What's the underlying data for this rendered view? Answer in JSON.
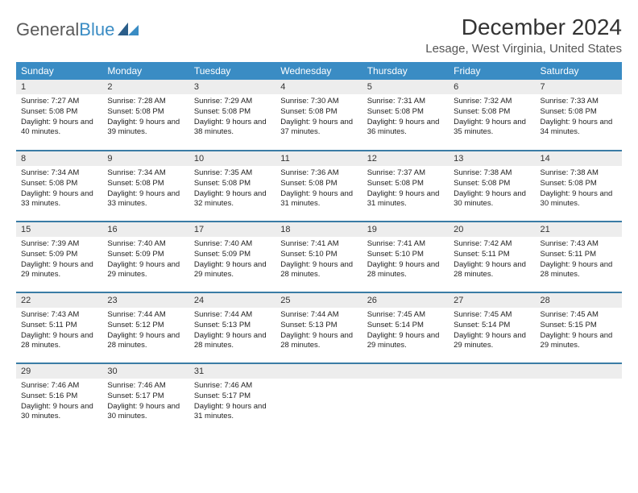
{
  "logo": {
    "text1": "General",
    "text2": "Blue"
  },
  "title": "December 2024",
  "location": "Lesage, West Virginia, United States",
  "colors": {
    "header_bg": "#3a8cc4",
    "header_text": "#ffffff",
    "row_border": "#3a7ca5",
    "daynum_bg": "#ededed",
    "page_bg": "#ffffff"
  },
  "day_headers": [
    "Sunday",
    "Monday",
    "Tuesday",
    "Wednesday",
    "Thursday",
    "Friday",
    "Saturday"
  ],
  "weeks": [
    [
      {
        "n": "1",
        "sr": "7:27 AM",
        "ss": "5:08 PM",
        "dl": "9 hours and 40 minutes."
      },
      {
        "n": "2",
        "sr": "7:28 AM",
        "ss": "5:08 PM",
        "dl": "9 hours and 39 minutes."
      },
      {
        "n": "3",
        "sr": "7:29 AM",
        "ss": "5:08 PM",
        "dl": "9 hours and 38 minutes."
      },
      {
        "n": "4",
        "sr": "7:30 AM",
        "ss": "5:08 PM",
        "dl": "9 hours and 37 minutes."
      },
      {
        "n": "5",
        "sr": "7:31 AM",
        "ss": "5:08 PM",
        "dl": "9 hours and 36 minutes."
      },
      {
        "n": "6",
        "sr": "7:32 AM",
        "ss": "5:08 PM",
        "dl": "9 hours and 35 minutes."
      },
      {
        "n": "7",
        "sr": "7:33 AM",
        "ss": "5:08 PM",
        "dl": "9 hours and 34 minutes."
      }
    ],
    [
      {
        "n": "8",
        "sr": "7:34 AM",
        "ss": "5:08 PM",
        "dl": "9 hours and 33 minutes."
      },
      {
        "n": "9",
        "sr": "7:34 AM",
        "ss": "5:08 PM",
        "dl": "9 hours and 33 minutes."
      },
      {
        "n": "10",
        "sr": "7:35 AM",
        "ss": "5:08 PM",
        "dl": "9 hours and 32 minutes."
      },
      {
        "n": "11",
        "sr": "7:36 AM",
        "ss": "5:08 PM",
        "dl": "9 hours and 31 minutes."
      },
      {
        "n": "12",
        "sr": "7:37 AM",
        "ss": "5:08 PM",
        "dl": "9 hours and 31 minutes."
      },
      {
        "n": "13",
        "sr": "7:38 AM",
        "ss": "5:08 PM",
        "dl": "9 hours and 30 minutes."
      },
      {
        "n": "14",
        "sr": "7:38 AM",
        "ss": "5:08 PM",
        "dl": "9 hours and 30 minutes."
      }
    ],
    [
      {
        "n": "15",
        "sr": "7:39 AM",
        "ss": "5:09 PM",
        "dl": "9 hours and 29 minutes."
      },
      {
        "n": "16",
        "sr": "7:40 AM",
        "ss": "5:09 PM",
        "dl": "9 hours and 29 minutes."
      },
      {
        "n": "17",
        "sr": "7:40 AM",
        "ss": "5:09 PM",
        "dl": "9 hours and 29 minutes."
      },
      {
        "n": "18",
        "sr": "7:41 AM",
        "ss": "5:10 PM",
        "dl": "9 hours and 28 minutes."
      },
      {
        "n": "19",
        "sr": "7:41 AM",
        "ss": "5:10 PM",
        "dl": "9 hours and 28 minutes."
      },
      {
        "n": "20",
        "sr": "7:42 AM",
        "ss": "5:11 PM",
        "dl": "9 hours and 28 minutes."
      },
      {
        "n": "21",
        "sr": "7:43 AM",
        "ss": "5:11 PM",
        "dl": "9 hours and 28 minutes."
      }
    ],
    [
      {
        "n": "22",
        "sr": "7:43 AM",
        "ss": "5:11 PM",
        "dl": "9 hours and 28 minutes."
      },
      {
        "n": "23",
        "sr": "7:44 AM",
        "ss": "5:12 PM",
        "dl": "9 hours and 28 minutes."
      },
      {
        "n": "24",
        "sr": "7:44 AM",
        "ss": "5:13 PM",
        "dl": "9 hours and 28 minutes."
      },
      {
        "n": "25",
        "sr": "7:44 AM",
        "ss": "5:13 PM",
        "dl": "9 hours and 28 minutes."
      },
      {
        "n": "26",
        "sr": "7:45 AM",
        "ss": "5:14 PM",
        "dl": "9 hours and 29 minutes."
      },
      {
        "n": "27",
        "sr": "7:45 AM",
        "ss": "5:14 PM",
        "dl": "9 hours and 29 minutes."
      },
      {
        "n": "28",
        "sr": "7:45 AM",
        "ss": "5:15 PM",
        "dl": "9 hours and 29 minutes."
      }
    ],
    [
      {
        "n": "29",
        "sr": "7:46 AM",
        "ss": "5:16 PM",
        "dl": "9 hours and 30 minutes."
      },
      {
        "n": "30",
        "sr": "7:46 AM",
        "ss": "5:17 PM",
        "dl": "9 hours and 30 minutes."
      },
      {
        "n": "31",
        "sr": "7:46 AM",
        "ss": "5:17 PM",
        "dl": "9 hours and 31 minutes."
      },
      null,
      null,
      null,
      null
    ]
  ],
  "labels": {
    "sunrise": "Sunrise: ",
    "sunset": "Sunset: ",
    "daylight": "Daylight: "
  }
}
